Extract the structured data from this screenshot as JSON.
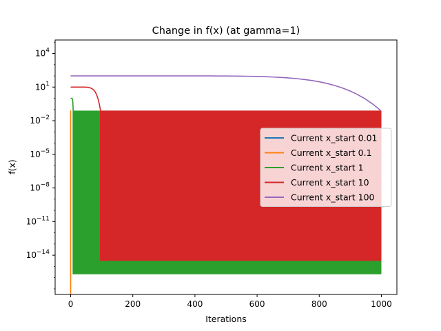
{
  "chart_data": {
    "type": "line",
    "title": "Change in f(x) (at gamma=1)",
    "xlabel": "Iterations",
    "ylabel": "f(x)",
    "xlim": [
      -50,
      1050
    ],
    "ylim_log10": [
      -17.5,
      5.2
    ],
    "yscale": "log",
    "grid": false,
    "legend_position": "center-right",
    "x_ticks": [
      {
        "value": 0,
        "label": "0"
      },
      {
        "value": 200,
        "label": "200"
      },
      {
        "value": 400,
        "label": "400"
      },
      {
        "value": 600,
        "label": "600"
      },
      {
        "value": 800,
        "label": "800"
      },
      {
        "value": 1000,
        "label": "1000"
      }
    ],
    "y_ticks": [
      {
        "exp": 4,
        "base": "10",
        "sup": "4"
      },
      {
        "exp": 1,
        "base": "10",
        "sup": "1"
      },
      {
        "exp": -2,
        "base": "10",
        "sup": "−2"
      },
      {
        "exp": -5,
        "base": "10",
        "sup": "−5"
      },
      {
        "exp": -8,
        "base": "10",
        "sup": "−8"
      },
      {
        "exp": -11,
        "base": "10",
        "sup": "−11"
      },
      {
        "exp": -14,
        "base": "10",
        "sup": "−14"
      }
    ],
    "series": [
      {
        "name": "Current x_start 0.01",
        "color": "#1f77b4",
        "start_log10": -2,
        "oscillation_start": 0,
        "high_log10": -1.1,
        "low_log10": -2.0,
        "end_iteration": 1
      },
      {
        "name": "Current x_start 0.1",
        "color": "#ff7f0e",
        "start_log10": -1.1,
        "oscillation_start": 0,
        "high_log10": -1.1,
        "low_log10": -17.5,
        "end_iteration": 1
      },
      {
        "name": "Current x_start 1",
        "color": "#2ca02c",
        "start_log10": 0.0,
        "oscillation_start": 8,
        "high_log10": -1.1,
        "low_log10": -15.7,
        "end_iteration": 1000
      },
      {
        "name": "Current x_start 10",
        "color": "#d62728",
        "start_log10": 1.0,
        "oscillation_start": 96,
        "high_log10": -1.1,
        "low_log10": -14.5,
        "end_iteration": 1000
      },
      {
        "name": "Current x_start 100",
        "color": "#9467bd",
        "start_log10": 2.0,
        "oscillation_start": 998,
        "high_log10": -1.1,
        "low_log10": -1.1,
        "end_iteration": 1000
      }
    ]
  }
}
